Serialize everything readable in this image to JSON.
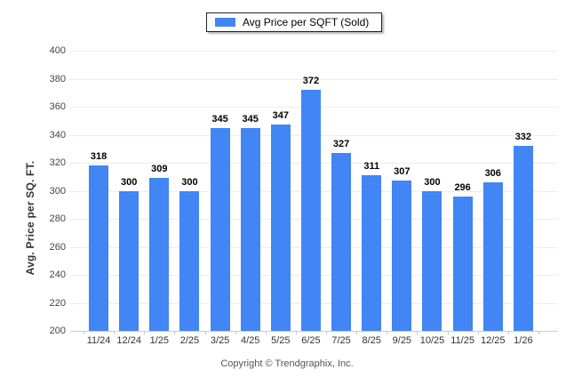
{
  "legend": {
    "label": "Avg Price per SQFT (Sold)",
    "swatch_icon": "legend-color-swatch"
  },
  "footer": {
    "copyright": "Copyright © Trendgraphix, Inc."
  },
  "colors": {
    "bar": "#4285f4",
    "gridline": "#ececec",
    "axis_line": "#cccccc",
    "tick": "#b9c9e0",
    "y_label": "#444444",
    "x_label": "#333333",
    "value_label": "#000000"
  },
  "chart_data": {
    "type": "bar",
    "title": "",
    "xlabel": "",
    "ylabel": "Avg. Price per SQ. FT.",
    "legend_entries": [
      "Avg Price per SQFT (Sold)"
    ],
    "legend_position": "top-center",
    "grid": true,
    "ylim": [
      200,
      400
    ],
    "ytick_step": 20,
    "yticks": [
      200,
      220,
      240,
      260,
      280,
      300,
      320,
      340,
      360,
      380,
      400
    ],
    "categories": [
      "11/24",
      "12/24",
      "1/25",
      "2/25",
      "3/25",
      "4/25",
      "5/25",
      "6/25",
      "7/25",
      "8/25",
      "9/25",
      "10/25",
      "11/25",
      "12/25",
      "1/26"
    ],
    "series": [
      {
        "name": "Avg Price per SQFT (Sold)",
        "values": [
          318,
          300,
          309,
          300,
          345,
          345,
          347,
          372,
          327,
          311,
          307,
          300,
          296,
          306,
          332
        ]
      }
    ]
  }
}
